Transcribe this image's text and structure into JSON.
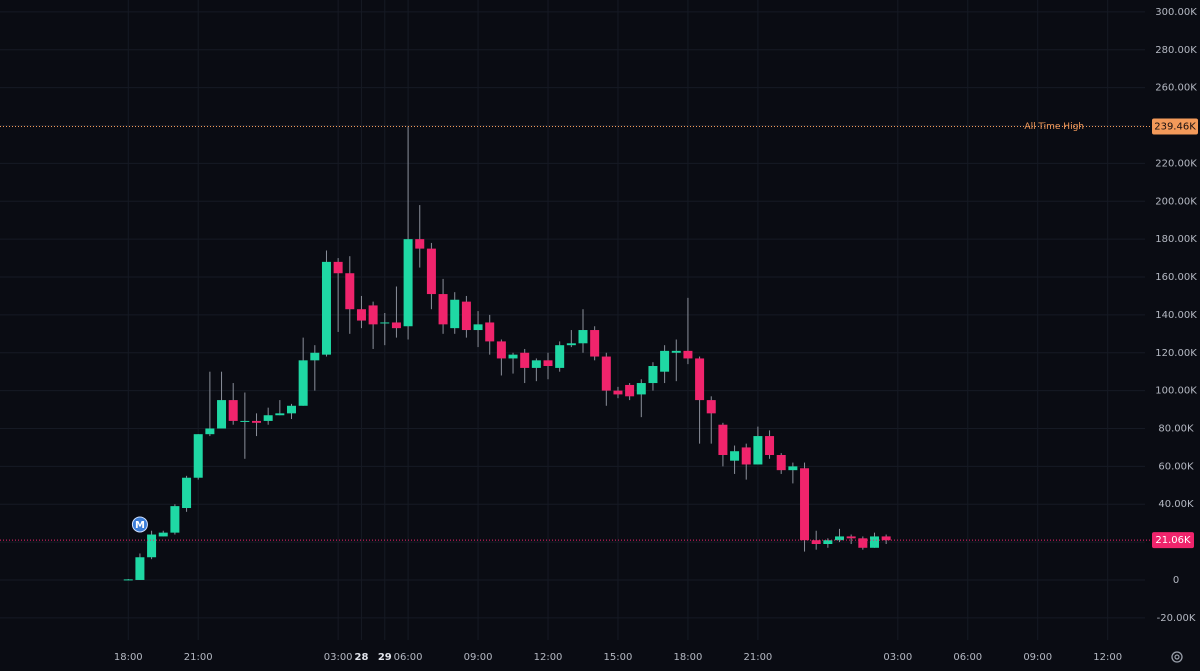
{
  "chart_data": {
    "type": "candlestick",
    "x": [
      18,
      18.5,
      19,
      19.5,
      20,
      20.5,
      21,
      21.5,
      22,
      22.5,
      23,
      23.5,
      24,
      24.5,
      25,
      25.5,
      26,
      26.5,
      27,
      27.5,
      28,
      28.5,
      29,
      29.5,
      30,
      30.5,
      31,
      31.5,
      32,
      32.5,
      33,
      33.5,
      34,
      34.5,
      35,
      35.5,
      36,
      36.5,
      37,
      37.5,
      38,
      38.5,
      39,
      39.5,
      40,
      40.5,
      41,
      41.5,
      42,
      42.5,
      43,
      43.5,
      44,
      44.5,
      45,
      45.5,
      46,
      46.5,
      47,
      47.5,
      48,
      48.5,
      49,
      49.5,
      50,
      50.5
    ],
    "open": [
      0,
      0,
      12,
      23,
      25,
      38,
      54,
      77,
      80,
      95,
      84,
      84,
      84,
      87,
      88,
      92,
      116,
      119,
      168,
      162,
      143,
      145,
      136,
      136,
      134,
      180,
      175,
      151,
      133,
      147,
      132,
      136,
      126,
      117,
      120,
      112,
      116,
      112,
      124,
      125,
      132,
      118,
      100,
      103,
      98,
      104,
      110,
      120,
      121,
      117,
      95,
      82,
      63,
      70,
      61,
      76,
      66,
      58,
      59,
      21,
      19,
      21,
      23,
      22,
      17,
      23
    ],
    "high": [
      0.5,
      14,
      26,
      26,
      40,
      55,
      77,
      110,
      110,
      104,
      99,
      88,
      91,
      95,
      93,
      128,
      124,
      174,
      170,
      171,
      150,
      147,
      141,
      155,
      239.46,
      198,
      178,
      159,
      152,
      150,
      142,
      140,
      127,
      120,
      122,
      117,
      120,
      126,
      132,
      143,
      134,
      120,
      102,
      104,
      106,
      115,
      124,
      127,
      149,
      118,
      97,
      83,
      71,
      72,
      81,
      79,
      67,
      62,
      62,
      26,
      22,
      27,
      24,
      23,
      25,
      24
    ],
    "low": [
      0,
      0,
      11,
      23,
      24,
      36,
      53,
      76,
      80,
      82,
      64,
      76,
      82,
      87,
      85,
      92,
      100,
      118,
      131,
      130,
      133,
      122,
      124,
      128,
      127,
      165,
      143,
      130,
      130,
      128,
      123,
      119,
      108,
      109,
      104,
      105,
      106,
      110,
      123,
      120,
      116,
      92,
      96,
      95,
      86,
      100,
      104,
      105,
      114,
      72,
      72,
      60,
      56,
      53,
      61,
      64,
      56,
      51,
      15,
      16,
      17,
      20,
      19,
      16,
      17,
      19
    ],
    "close": [
      0.3,
      12,
      24,
      25,
      39,
      54,
      77,
      80,
      95,
      84,
      84,
      83,
      87,
      88,
      92,
      116,
      120,
      168,
      162,
      143,
      137,
      135,
      136,
      133,
      180,
      175,
      151,
      135,
      148,
      132,
      135,
      126,
      117,
      119,
      112,
      116,
      113,
      124,
      125,
      132,
      118,
      100,
      98,
      97,
      104,
      113,
      121,
      121,
      117,
      95,
      88,
      66,
      68,
      61,
      76,
      66,
      58,
      60,
      21,
      19,
      21,
      23,
      22,
      17,
      23,
      21
    ],
    "up_color": "#1fd8a4",
    "down_color": "#f0246c",
    "xlim": [
      12.5,
      61.6
    ],
    "xticks": [
      {
        "value": 18,
        "label": "18:00"
      },
      {
        "value": 21,
        "label": "21:00"
      },
      28,
      {
        "value": 27,
        "label": "03:00"
      },
      {
        "value": 30,
        "label": "06:00"
      },
      {
        "value": 33,
        "label": "09:00"
      },
      {
        "value": 36,
        "label": "12:00"
      },
      {
        "value": 39,
        "label": "15:00"
      },
      {
        "value": 42,
        "label": "18:00"
      },
      {
        "value": 45,
        "label": "21:00"
      },
      29,
      {
        "value": 51,
        "label": "03:00"
      },
      {
        "value": 54,
        "label": "06:00"
      },
      {
        "value": 57,
        "label": "09:00"
      },
      {
        "value": 60,
        "label": "12:00"
      }
    ],
    "ylim": [
      -31.7,
      306.3
    ],
    "yticks": [
      {
        "value": -20,
        "label": "-20.00K"
      },
      0,
      {
        "value": 20,
        "label": "20.00K"
      },
      {
        "value": 40,
        "label": "40.00K"
      },
      {
        "value": 60,
        "label": "60.00K"
      },
      {
        "value": 80,
        "label": "80.00K"
      },
      {
        "value": 100,
        "label": "100.00K"
      },
      {
        "value": 120,
        "label": "120.00K"
      },
      {
        "value": 140,
        "label": "140.00K"
      },
      {
        "value": 160,
        "label": "160.00K"
      },
      {
        "value": 180,
        "label": "180.00K"
      },
      {
        "value": 200,
        "label": "200.00K"
      },
      {
        "value": 220,
        "label": "220.00K"
      },
      {
        "value": 240,
        "label": "240.00K"
      },
      {
        "value": 260,
        "label": "260.00K"
      },
      {
        "value": 280,
        "label": "280.00K"
      },
      {
        "value": 300,
        "label": "300.00K"
      }
    ],
    "grid": true,
    "ath": {
      "text": "All Time High",
      "value": 239.46,
      "label": "239.46K",
      "color": "#f39a5a"
    },
    "last_price": {
      "value": 21.06,
      "label": "21.06K",
      "color": "#f0246c"
    },
    "marker": {
      "text": "M",
      "x": 18.5,
      "color": "#3b7dd8"
    }
  }
}
